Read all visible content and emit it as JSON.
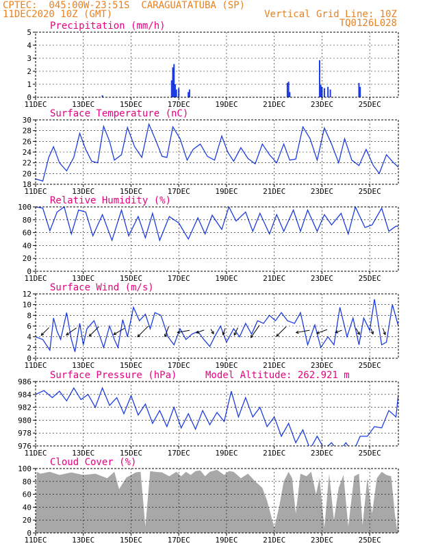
{
  "header": {
    "line1": "CPTEC:  045:00W-23:51S  CARAGUATATUBA (SP)",
    "line2": "11DEC2020 10Z (GMT)",
    "grid_note": "Vertical Grid Line: 10Z",
    "code": "TQ0126L028"
  },
  "x_axis": {
    "ticks": [
      {
        "day": 0,
        "label": "11DEC"
      },
      {
        "day": 2,
        "label": "13DEC"
      },
      {
        "day": 4,
        "label": "15DEC"
      },
      {
        "day": 6,
        "label": "17DEC"
      },
      {
        "day": 8,
        "label": "19DEC"
      },
      {
        "day": 10,
        "label": "21DEC"
      },
      {
        "day": 12,
        "label": "23DEC"
      },
      {
        "day": 14,
        "label": "25DEC"
      }
    ],
    "range_days": [
      0,
      15.2
    ]
  },
  "colors": {
    "title": "#e6007e",
    "header": "#e8801e",
    "line": "#1c3ce0",
    "cloud": "#a8a8a8",
    "arrow": "#000000"
  },
  "chart_data": [
    {
      "type": "bar",
      "title": "Precipitation (mm/h)",
      "ylim": [
        0,
        5
      ],
      "yticks": [
        0,
        1,
        2,
        3,
        4,
        5
      ],
      "x": [
        2.8,
        5.7,
        5.75,
        5.8,
        5.85,
        5.9,
        6.0,
        6.4,
        6.45,
        10.55,
        10.6,
        10.65,
        11.9,
        11.95,
        12.0,
        12.1,
        12.25,
        12.35,
        13.55,
        13.6
      ],
      "values": [
        0.15,
        1.3,
        2.3,
        2.55,
        1.0,
        0.6,
        0.7,
        0.4,
        0.6,
        1.1,
        1.2,
        0.4,
        2.85,
        0.95,
        0.8,
        0.7,
        0.8,
        0.6,
        1.1,
        0.8
      ]
    },
    {
      "type": "line",
      "title": "Surface Temperature (nC)",
      "ylim": [
        18,
        30
      ],
      "yticks": [
        18,
        20,
        22,
        24,
        26,
        28,
        30
      ],
      "x": [
        0.0,
        0.3,
        0.55,
        0.75,
        1.0,
        1.3,
        1.6,
        1.85,
        2.1,
        2.35,
        2.6,
        2.85,
        3.1,
        3.3,
        3.6,
        3.85,
        4.15,
        4.45,
        4.75,
        5.05,
        5.3,
        5.5,
        5.75,
        6.05,
        6.35,
        6.6,
        6.9,
        7.2,
        7.5,
        7.8,
        8.05,
        8.3,
        8.6,
        8.9,
        9.2,
        9.5,
        9.8,
        10.1,
        10.4,
        10.65,
        10.9,
        11.2,
        11.5,
        11.8,
        12.1,
        12.4,
        12.7,
        12.95,
        13.25,
        13.55,
        13.85,
        14.15,
        14.4,
        14.7,
        15.0,
        15.2
      ],
      "values": [
        19,
        18.6,
        23,
        25,
        22,
        20.5,
        23,
        27.5,
        24.5,
        22.3,
        22,
        28.8,
        26,
        22.5,
        23.5,
        28.6,
        25,
        23,
        29.2,
        26,
        23.2,
        23,
        28.7,
        26.5,
        22.5,
        24.5,
        25.5,
        23.2,
        22.5,
        27,
        24,
        22.3,
        24.8,
        22.8,
        21.8,
        25.5,
        23.5,
        22,
        25.5,
        22.5,
        22.7,
        28.7,
        26.5,
        22.5,
        28.5,
        25.5,
        22,
        26.5,
        22.5,
        21.5,
        24.5,
        21.5,
        20,
        23.5,
        22,
        21.2
      ]
    },
    {
      "type": "line",
      "title": "Relative Humidity (%)",
      "ylim": [
        0,
        100
      ],
      "yticks": [
        0,
        20,
        40,
        60,
        80,
        100
      ],
      "x": [
        0.0,
        0.3,
        0.6,
        0.9,
        1.2,
        1.5,
        1.8,
        2.1,
        2.4,
        2.8,
        3.2,
        3.6,
        3.9,
        4.3,
        4.6,
        4.9,
        5.2,
        5.6,
        6.0,
        6.4,
        6.8,
        7.1,
        7.4,
        7.8,
        8.1,
        8.4,
        8.8,
        9.1,
        9.4,
        9.8,
        10.1,
        10.4,
        10.8,
        11.1,
        11.4,
        11.8,
        12.1,
        12.4,
        12.8,
        13.1,
        13.4,
        13.8,
        14.1,
        14.5,
        14.8,
        15.1,
        15.2
      ],
      "values": [
        100,
        98,
        63,
        92,
        100,
        58,
        95,
        92,
        55,
        88,
        48,
        95,
        55,
        85,
        52,
        90,
        48,
        85,
        75,
        50,
        83,
        58,
        87,
        65,
        100,
        78,
        92,
        62,
        90,
        58,
        88,
        62,
        95,
        62,
        95,
        62,
        88,
        72,
        90,
        58,
        100,
        68,
        72,
        98,
        62,
        70,
        70
      ]
    },
    {
      "type": "line",
      "title": "Surface Wind (m/s)",
      "ylim": [
        0,
        12
      ],
      "yticks": [
        0,
        2,
        4,
        6,
        8,
        10,
        12
      ],
      "x": [
        0.0,
        0.3,
        0.6,
        0.75,
        0.9,
        1.05,
        1.3,
        1.5,
        1.65,
        1.85,
        2.0,
        2.15,
        2.45,
        2.7,
        2.85,
        3.1,
        3.3,
        3.45,
        3.65,
        3.85,
        4.1,
        4.35,
        4.6,
        4.8,
        5.0,
        5.25,
        5.55,
        5.8,
        6.05,
        6.3,
        6.55,
        6.8,
        7.05,
        7.3,
        7.5,
        7.75,
        8.0,
        8.3,
        8.55,
        8.8,
        9.05,
        9.3,
        9.55,
        9.8,
        10.05,
        10.3,
        10.55,
        10.85,
        11.1,
        11.4,
        11.7,
        11.95,
        12.25,
        12.5,
        12.75,
        13.05,
        13.3,
        13.55,
        13.75,
        14.0,
        14.2,
        14.5,
        14.7,
        14.95,
        15.2
      ],
      "values": [
        4,
        3.5,
        1.5,
        7.5,
        5,
        3.5,
        8.5,
        3.5,
        1.2,
        6.5,
        2.5,
        5.5,
        7,
        4,
        2,
        6,
        3.5,
        2,
        7.2,
        4,
        9.5,
        7,
        8.2,
        5.5,
        8.5,
        8,
        4,
        2.5,
        5.5,
        3.5,
        4.5,
        5,
        3.5,
        2.2,
        4,
        6,
        3,
        5.5,
        4,
        6.5,
        4.5,
        7,
        6.5,
        8,
        7,
        8.5,
        7,
        6.5,
        8.5,
        2.5,
        6.2,
        2,
        4,
        2.5,
        9.5,
        4,
        7.5,
        2.5,
        7.5,
        5.2,
        11,
        2.5,
        3,
        10,
        6
      ]
    },
    {
      "type": "line",
      "title": "Surface Pressure (hPa)",
      "subtitle": "Model Altitude: 262.921 m",
      "ylim": [
        976,
        986
      ],
      "yticks": [
        976,
        978,
        980,
        982,
        984,
        986
      ],
      "x": [
        0.0,
        0.35,
        0.7,
        1.0,
        1.3,
        1.6,
        1.9,
        2.2,
        2.5,
        2.8,
        3.1,
        3.4,
        3.7,
        4.0,
        4.3,
        4.6,
        4.9,
        5.2,
        5.5,
        5.8,
        6.1,
        6.4,
        6.7,
        7.0,
        7.3,
        7.6,
        7.9,
        8.2,
        8.5,
        8.8,
        9.1,
        9.4,
        9.7,
        10.0,
        10.3,
        10.6,
        10.9,
        11.2,
        11.5,
        11.8,
        12.1,
        12.4,
        12.7,
        13.0,
        13.3,
        13.6,
        13.9,
        14.2,
        14.5,
        14.8,
        15.1,
        15.2
      ],
      "values": [
        984,
        984.6,
        983.5,
        984.5,
        983,
        985,
        983.2,
        984,
        982,
        985,
        982.3,
        983.5,
        981,
        983.8,
        980.8,
        982.5,
        979.5,
        981.5,
        979,
        982,
        978.8,
        981,
        978.6,
        981.5,
        979.3,
        981.2,
        979.8,
        984.5,
        980.5,
        983.5,
        980.5,
        982,
        979,
        980.5,
        977.5,
        979.5,
        976.5,
        978.5,
        975.5,
        977.5,
        975.5,
        976.5,
        975,
        976.5,
        975,
        977.5,
        977.5,
        979,
        978.8,
        981.5,
        980.5,
        984
      ]
    },
    {
      "type": "area",
      "title": "Cloud Cover (%)",
      "ylim": [
        0,
        100
      ],
      "yticks": [
        0,
        20,
        40,
        60,
        80,
        100
      ],
      "x": [
        0.0,
        0.05,
        0.2,
        0.6,
        1.0,
        1.5,
        2.0,
        2.5,
        3.0,
        3.3,
        3.5,
        3.8,
        4.2,
        4.4,
        4.6,
        4.8,
        5.0,
        5.3,
        5.6,
        5.9,
        6.1,
        6.3,
        6.5,
        6.7,
        6.9,
        7.1,
        7.3,
        7.6,
        7.9,
        8.1,
        8.3,
        8.6,
        8.9,
        9.2,
        9.5,
        9.7,
        10.0,
        10.2,
        10.4,
        10.6,
        10.75,
        10.9,
        11.1,
        11.35,
        11.55,
        11.75,
        11.9,
        12.1,
        12.3,
        12.5,
        12.7,
        12.9,
        13.1,
        13.35,
        13.55,
        13.7,
        13.9,
        14.1,
        14.3,
        14.5,
        14.7,
        14.9,
        15.05,
        15.15,
        15.2
      ],
      "values": [
        0,
        95,
        92,
        95,
        90,
        94,
        90,
        92,
        85,
        95,
        68,
        86,
        94,
        95,
        10,
        96,
        95,
        94,
        88,
        95,
        88,
        95,
        90,
        96,
        97,
        88,
        95,
        98,
        90,
        96,
        95,
        85,
        92,
        80,
        70,
        50,
        8,
        40,
        80,
        95,
        85,
        30,
        92,
        88,
        95,
        60,
        85,
        8,
        92,
        20,
        70,
        90,
        10,
        88,
        92,
        12,
        85,
        30,
        85,
        95,
        90,
        88,
        30,
        3,
        95
      ]
    }
  ],
  "wind_arrows": [
    {
      "day": 0.4,
      "speed": 4.0,
      "dir_deg": 225
    },
    {
      "day": 1.5,
      "speed": 4.5,
      "dir_deg": 215
    },
    {
      "day": 2.45,
      "speed": 5.0,
      "dir_deg": 225
    },
    {
      "day": 3.5,
      "speed": 4.5,
      "dir_deg": 210
    },
    {
      "day": 4.5,
      "speed": 5.5,
      "dir_deg": 225
    },
    {
      "day": 5.5,
      "speed": 4.0,
      "dir_deg": 250
    },
    {
      "day": 6.2,
      "speed": 4.5,
      "dir_deg": 190
    },
    {
      "day": 6.9,
      "speed": 3.0,
      "dir_deg": 200
    },
    {
      "day": 7.4,
      "speed": 2.0,
      "dir_deg": 300
    },
    {
      "day": 7.9,
      "speed": 2.5,
      "dir_deg": 250
    },
    {
      "day": 8.4,
      "speed": 3.0,
      "dir_deg": 245
    },
    {
      "day": 9.2,
      "speed": 5.5,
      "dir_deg": 235
    },
    {
      "day": 10.3,
      "speed": 5.0,
      "dir_deg": 225
    },
    {
      "day": 11.2,
      "speed": 5.0,
      "dir_deg": 190
    },
    {
      "day": 12.0,
      "speed": 4.0,
      "dir_deg": 200
    },
    {
      "day": 12.7,
      "speed": 2.5,
      "dir_deg": 200
    },
    {
      "day": 13.5,
      "speed": 2.5,
      "dir_deg": 300
    },
    {
      "day": 14.1,
      "speed": 2.0,
      "dir_deg": 290
    },
    {
      "day": 14.6,
      "speed": 2.5,
      "dir_deg": 290
    }
  ]
}
